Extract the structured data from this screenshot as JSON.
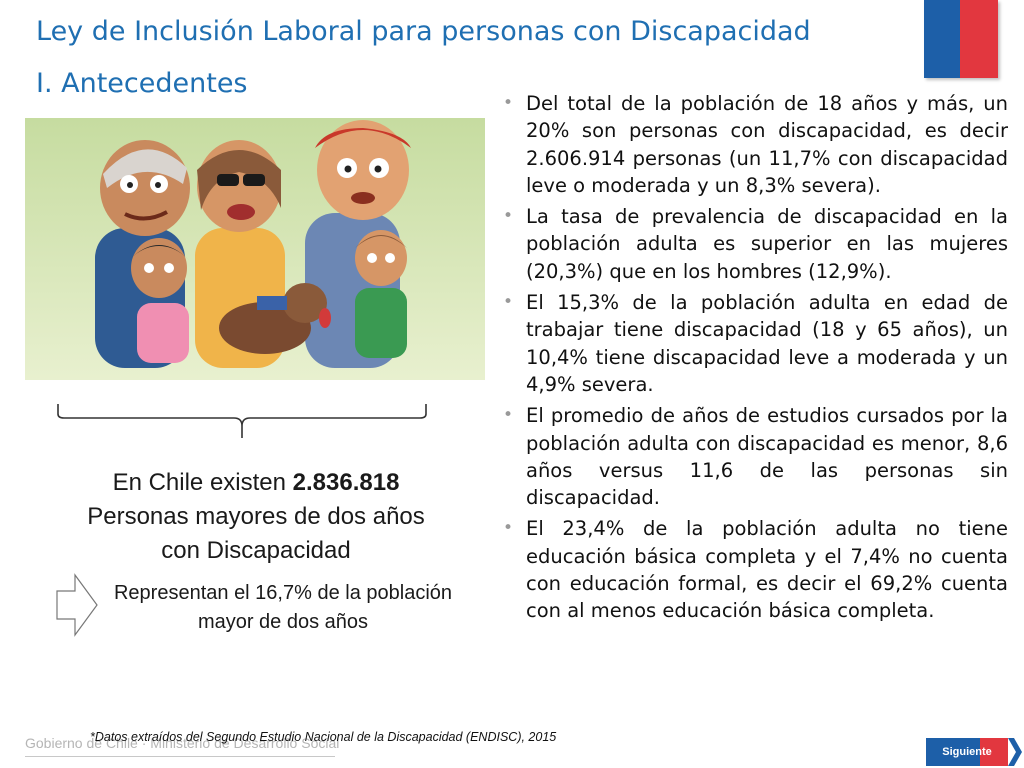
{
  "header": {
    "title": "Ley de Inclusión Laboral para personas con Discapacidad",
    "subtitle": "I. Antecedentes"
  },
  "colors": {
    "title": "#1f6fb2",
    "flag_blue": "#1d5fa8",
    "flag_red": "#e2373f",
    "text": "#1a1a1a",
    "muted": "#b5b5b5"
  },
  "stat": {
    "prefix": "En Chile existen ",
    "number": "2.836.818",
    "line2": "Personas mayores de dos años",
    "line3": "con Discapacidad"
  },
  "represent": {
    "line1": "Representan el 16,7% de la población",
    "line2": "mayor de dos años"
  },
  "bullets": [
    {
      "text": "Del total de la población de 18 años y más, un 20% son personas con discapacidad, es decir 2.606.914 personas (un 11,7% con discapacidad leve o moderada y un 8,3% severa)."
    },
    {
      "text": "La tasa de prevalencia de discapacidad en la población adulta es superior en las mujeres (20,3%) que en los hombres (12,9%)."
    },
    {
      "text": "El 15,3% de la población adulta en edad de trabajar tiene discapacidad (18 y 65 años), un 10,4% tiene discapacidad leve a moderada y un 4,9% severa."
    },
    {
      "text": "El promedio de años de estudios cursados por la población adulta con discapacidad es menor, 8,6 años versus 11,6 de las personas sin discapacidad."
    },
    {
      "text": "El 23,4% de la población adulta no tiene educación básica completa y el 7,4% no cuenta con educación formal, es decir el 69,2% cuenta con al menos educación básica completa."
    }
  ],
  "bullet_glyph": "•",
  "footnote": "*Datos extraídos del Segundo Estudio Nacional de la Discapacidad (ENDISC), 2015",
  "footer": {
    "brand": "Gobierno de Chile · Ministerio de Desarrollo Social",
    "next_label": "Siguiente"
  }
}
